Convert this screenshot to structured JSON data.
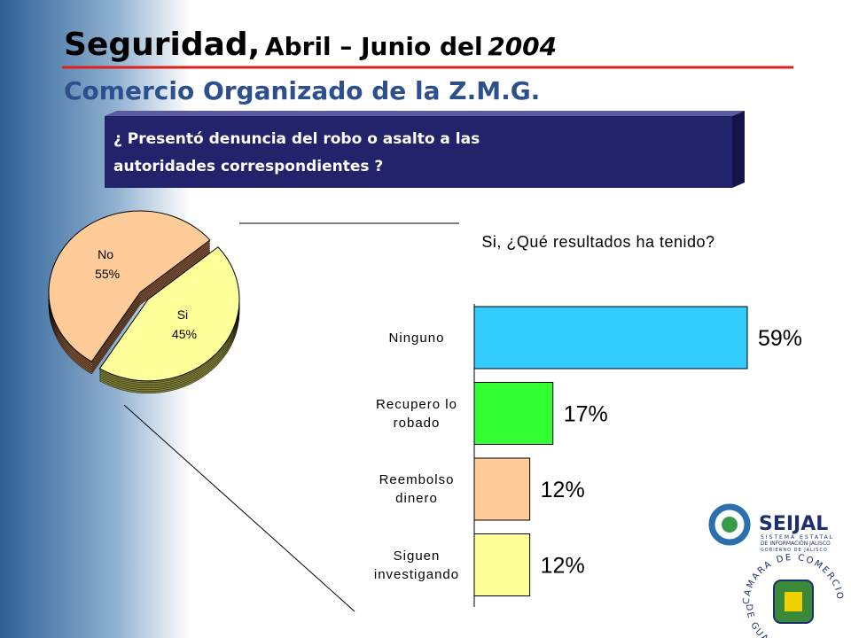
{
  "slide": {
    "title_main": "Seguridad,",
    "title_mid": "Abril – Junio del",
    "title_year": "2004",
    "subtitle": "Comercio Organizado de la Z.M.G.",
    "question_line1": "¿ Presentó denuncia del robo o asalto a las",
    "question_line2": "autoridades correspondientes ?",
    "logo_name": "SEIJAL",
    "logo_line1": "SISTEMA ESTATAL",
    "logo_line2": "DE INFORMACIÓN JALISCO",
    "logo_line3": "GOBIERNO DE JALISCO",
    "seal_top": "CAMARA DE COMERCIO",
    "seal_bottom": "DE GUADALAJARA"
  },
  "chart_data": [
    {
      "type": "pie",
      "categories": [
        "No",
        "Si"
      ],
      "values": [
        55,
        45
      ],
      "value_labels": [
        "55%",
        "45%"
      ],
      "colors": [
        "#ffcc99",
        "#ffff99"
      ],
      "side_colors": [
        "#8a5a3a",
        "#8a8a3a"
      ]
    },
    {
      "type": "bar",
      "title": "Si, ¿Qué resultados ha tenido?",
      "categories": [
        "Ninguno",
        "Recupero lo robado",
        "Reembolso dinero",
        "Siguen investigando"
      ],
      "values": [
        59,
        17,
        12,
        12
      ],
      "value_labels": [
        "59%",
        "17%",
        "12%",
        "12%"
      ],
      "colors": [
        "#33ccff",
        "#33ff33",
        "#ffcc99",
        "#ffff99"
      ]
    }
  ]
}
